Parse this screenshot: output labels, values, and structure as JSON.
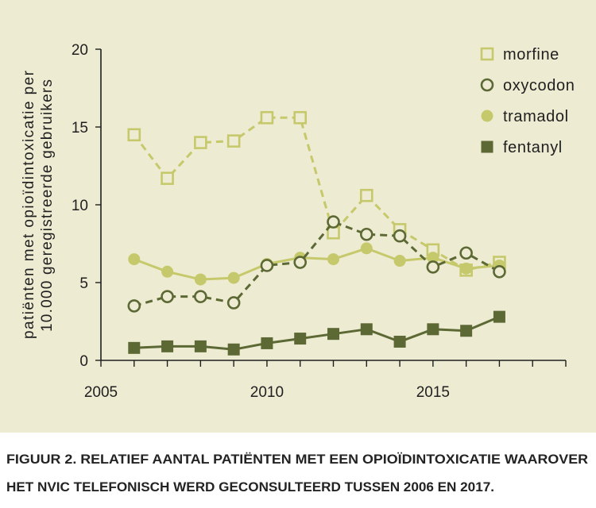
{
  "chart_data": {
    "type": "line",
    "x": [
      2006,
      2007,
      2008,
      2009,
      2010,
      2011,
      2012,
      2013,
      2014,
      2015,
      2016,
      2017
    ],
    "xlim": [
      2005,
      2019
    ],
    "ylim": [
      0,
      20
    ],
    "xticks": [
      2005,
      2010,
      2015
    ],
    "yticks": [
      0,
      5,
      10,
      15,
      20
    ],
    "ylabel": [
      "patiënten met opioïdintoxicatie per",
      "10.000 geregistreerde gebruikers"
    ],
    "legend_position": "top-right",
    "grid": false,
    "series": [
      {
        "name": "morfine",
        "color": "#c6c96b",
        "marker": "square",
        "marker_filled": false,
        "line_style": "dashed",
        "values": [
          14.5,
          11.7,
          14.0,
          14.1,
          15.6,
          15.6,
          8.2,
          10.6,
          8.4,
          7.1,
          5.8,
          6.3
        ]
      },
      {
        "name": "oxycodon",
        "color": "#5c6934",
        "marker": "circle",
        "marker_filled": false,
        "line_style": "dashed",
        "values": [
          3.5,
          4.1,
          4.1,
          3.7,
          6.1,
          6.3,
          8.9,
          8.1,
          8.0,
          6.0,
          6.9,
          5.7
        ]
      },
      {
        "name": "tramadol",
        "color": "#c6c96b",
        "marker": "circle",
        "marker_filled": true,
        "line_style": "solid",
        "values": [
          6.5,
          5.7,
          5.2,
          5.3,
          6.2,
          6.6,
          6.5,
          7.2,
          6.4,
          6.6,
          5.9,
          6.1
        ]
      },
      {
        "name": "fentanyl",
        "color": "#5c6934",
        "marker": "square",
        "marker_filled": true,
        "line_style": "solid",
        "values": [
          0.8,
          0.9,
          0.9,
          0.7,
          1.1,
          1.4,
          1.7,
          2.0,
          1.2,
          2.0,
          1.9,
          2.8
        ]
      }
    ]
  },
  "caption": {
    "lines": [
      "FIGUUR 2. RELATIEF AANTAL PATIËNTEN MET EEN OPIOÏDINTOXICATIE WAAROVER",
      "HET NVIC TELEFONISCH WERD GECONSULTEERD TUSSEN 2006 EN 2017."
    ]
  },
  "colors": {
    "panel_background": "#eeebd3",
    "page_background": "#ffffff",
    "axis": "#1f1f1f"
  }
}
